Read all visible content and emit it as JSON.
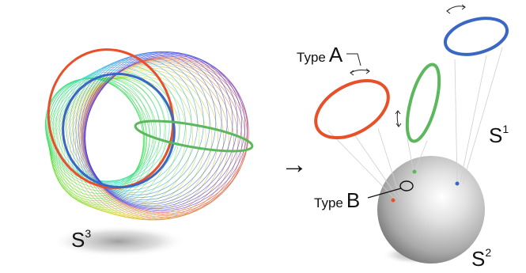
{
  "labels": {
    "s3_base": "S",
    "s3_sup": "3",
    "s1_base": "S",
    "s1_sup": "1",
    "s2_base": "S",
    "s2_sup": "2",
    "type_a_word": "Type",
    "type_a_letter": "A",
    "type_b_word": "Type",
    "type_b_letter": "B",
    "arrow": "→"
  },
  "colors": {
    "red": "#e8502a",
    "green": "#5cb85c",
    "blue": "#3a66c4",
    "sphere_light": "#ffffff",
    "sphere_dark": "#8c8c8c"
  }
}
